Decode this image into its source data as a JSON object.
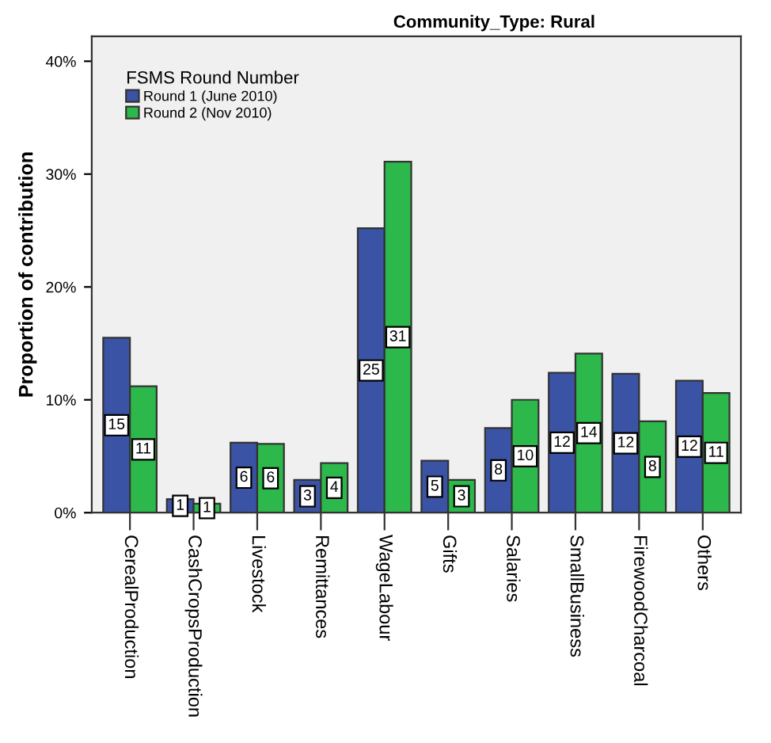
{
  "chart_data": {
    "type": "bar",
    "title": "Community_Type: Rural",
    "ylabel": "Proportion of contribution",
    "legend_title": "FSMS Round Number",
    "categories": [
      "CerealProduction",
      "CashCropsProduction",
      "Livestock",
      "Remittances",
      "WageLabour",
      "Gifts",
      "Salaries",
      "SmallBusiness",
      "FirewoodCharcoal",
      "Others"
    ],
    "series": [
      {
        "name": "Round 1 (June 2010)",
        "color": "#3a53a4",
        "values": [
          15.5,
          1.2,
          6.2,
          2.9,
          25.2,
          4.6,
          7.5,
          12.4,
          12.3,
          11.7
        ],
        "value_labels": [
          "15",
          "1",
          "6",
          "3",
          "25",
          "5",
          "8",
          "12",
          "12",
          "12"
        ]
      },
      {
        "name": "Round 2 (Nov 2010)",
        "color": "#2db84b",
        "values": [
          11.2,
          0.8,
          6.1,
          4.4,
          31.1,
          2.9,
          10.0,
          14.1,
          8.1,
          10.6
        ],
        "value_labels": [
          "11",
          "1",
          "6",
          "4",
          "31",
          "3",
          "10",
          "14",
          "8",
          "11"
        ]
      }
    ],
    "ylim": [
      0,
      42.2
    ],
    "yticks": [
      {
        "value": 0,
        "label": "0%"
      },
      {
        "value": 10,
        "label": "10%"
      },
      {
        "value": 20,
        "label": "20%"
      },
      {
        "value": 30,
        "label": "30%"
      },
      {
        "value": 40,
        "label": "40%"
      }
    ],
    "grid": false,
    "legend": "top left"
  }
}
